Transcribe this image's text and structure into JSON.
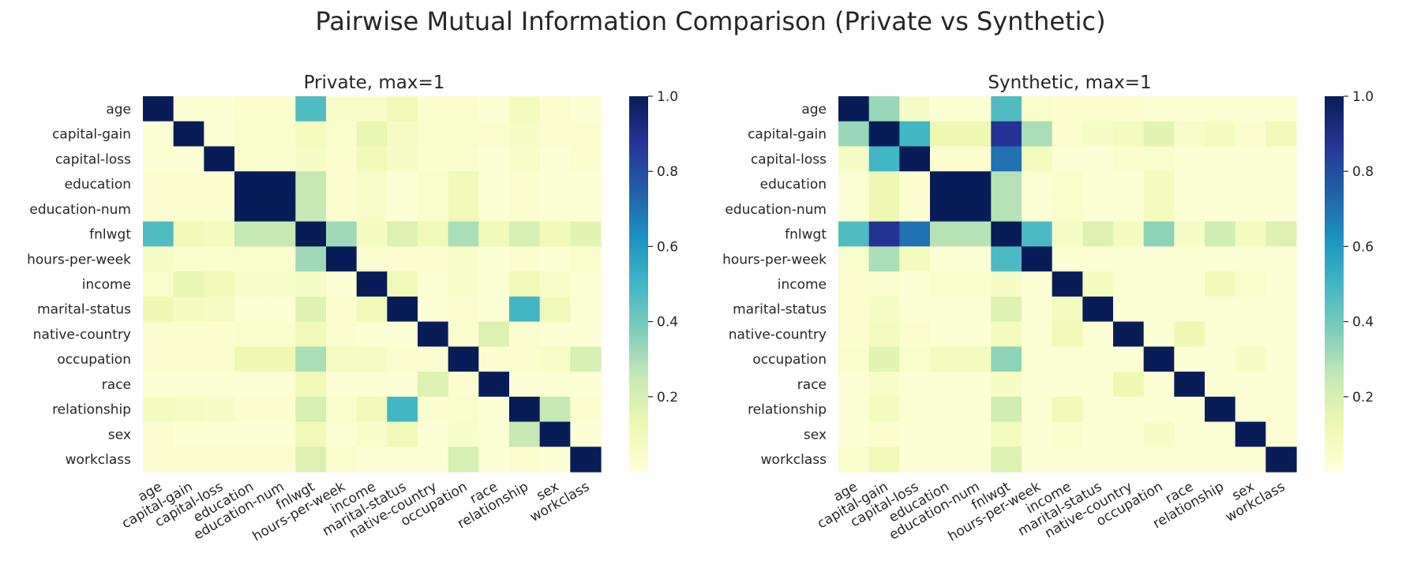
{
  "title": "Pairwise Mutual Information Comparison (Private vs Synthetic)",
  "variables": [
    "age",
    "capital-gain",
    "capital-loss",
    "education",
    "education-num",
    "fnlwgt",
    "hours-per-week",
    "income",
    "marital-status",
    "native-country",
    "occupation",
    "race",
    "relationship",
    "sex",
    "workclass"
  ],
  "colorscale": {
    "name": "YlGnBu",
    "stops": [
      "#ffffd9",
      "#edf8b1",
      "#c7e9b4",
      "#7fcdbb",
      "#41b6c4",
      "#1d91c0",
      "#225ea8",
      "#253494",
      "#081d58"
    ],
    "vmin": 0,
    "vmax": 1,
    "ticks": [
      0.2,
      0.4,
      0.6,
      0.8,
      1.0
    ],
    "tick_labels": [
      "0.2",
      "0.4",
      "0.6",
      "0.8",
      "1.0"
    ]
  },
  "chart_data": [
    {
      "type": "heatmap",
      "title": "Private, max=1",
      "values": [
        [
          1.0,
          0.02,
          0.02,
          0.03,
          0.03,
          0.47,
          0.05,
          0.05,
          0.1,
          0.03,
          0.03,
          0.02,
          0.08,
          0.03,
          0.02
        ],
        [
          0.02,
          1.0,
          0.02,
          0.04,
          0.04,
          0.08,
          0.04,
          0.14,
          0.07,
          0.04,
          0.04,
          0.03,
          0.06,
          0.03,
          0.03
        ],
        [
          0.02,
          0.02,
          1.0,
          0.04,
          0.04,
          0.06,
          0.03,
          0.1,
          0.06,
          0.03,
          0.03,
          0.02,
          0.05,
          0.02,
          0.03
        ],
        [
          0.03,
          0.03,
          0.03,
          1.0,
          1.0,
          0.25,
          0.03,
          0.05,
          0.02,
          0.04,
          0.1,
          0.02,
          0.03,
          0.02,
          0.02
        ],
        [
          0.03,
          0.03,
          0.03,
          1.0,
          1.0,
          0.25,
          0.03,
          0.05,
          0.02,
          0.04,
          0.1,
          0.02,
          0.03,
          0.02,
          0.02
        ],
        [
          0.47,
          0.1,
          0.08,
          0.25,
          0.25,
          1.0,
          0.32,
          0.08,
          0.18,
          0.1,
          0.3,
          0.1,
          0.2,
          0.1,
          0.16
        ],
        [
          0.06,
          0.04,
          0.04,
          0.04,
          0.04,
          0.32,
          1.0,
          0.03,
          0.03,
          0.03,
          0.05,
          0.02,
          0.03,
          0.02,
          0.04
        ],
        [
          0.04,
          0.14,
          0.1,
          0.05,
          0.05,
          0.06,
          0.02,
          1.0,
          0.1,
          0.02,
          0.05,
          0.02,
          0.1,
          0.05,
          0.02
        ],
        [
          0.12,
          0.08,
          0.07,
          0.02,
          0.02,
          0.18,
          0.03,
          0.1,
          1.0,
          0.02,
          0.03,
          0.02,
          0.5,
          0.1,
          0.02
        ],
        [
          0.03,
          0.03,
          0.03,
          0.04,
          0.04,
          0.1,
          0.03,
          0.02,
          0.02,
          1.0,
          0.03,
          0.18,
          0.03,
          0.02,
          0.02
        ],
        [
          0.03,
          0.03,
          0.03,
          0.12,
          0.12,
          0.3,
          0.07,
          0.07,
          0.03,
          0.03,
          1.0,
          0.03,
          0.03,
          0.05,
          0.2
        ],
        [
          0.02,
          0.02,
          0.02,
          0.02,
          0.02,
          0.1,
          0.02,
          0.02,
          0.02,
          0.18,
          0.03,
          1.0,
          0.02,
          0.02,
          0.02
        ],
        [
          0.08,
          0.07,
          0.06,
          0.03,
          0.03,
          0.2,
          0.04,
          0.1,
          0.5,
          0.03,
          0.04,
          0.02,
          1.0,
          0.25,
          0.03
        ],
        [
          0.03,
          0.02,
          0.02,
          0.02,
          0.02,
          0.1,
          0.02,
          0.05,
          0.1,
          0.02,
          0.05,
          0.02,
          0.25,
          1.0,
          0.02
        ],
        [
          0.03,
          0.03,
          0.03,
          0.03,
          0.03,
          0.18,
          0.04,
          0.02,
          0.02,
          0.02,
          0.2,
          0.02,
          0.03,
          0.02,
          1.0
        ]
      ]
    },
    {
      "type": "heatmap",
      "title": "Synthetic, max=1",
      "values": [
        [
          1.0,
          0.33,
          0.06,
          0.02,
          0.02,
          0.47,
          0.04,
          0.03,
          0.03,
          0.03,
          0.02,
          0.02,
          0.02,
          0.02,
          0.02
        ],
        [
          0.33,
          1.0,
          0.5,
          0.12,
          0.12,
          0.88,
          0.3,
          0.03,
          0.06,
          0.08,
          0.16,
          0.05,
          0.08,
          0.03,
          0.1
        ],
        [
          0.06,
          0.5,
          1.0,
          0.03,
          0.03,
          0.7,
          0.08,
          0.02,
          0.02,
          0.03,
          0.04,
          0.02,
          0.02,
          0.02,
          0.02
        ],
        [
          0.02,
          0.12,
          0.03,
          1.0,
          1.0,
          0.28,
          0.02,
          0.04,
          0.02,
          0.02,
          0.08,
          0.02,
          0.02,
          0.02,
          0.02
        ],
        [
          0.02,
          0.12,
          0.03,
          1.0,
          1.0,
          0.28,
          0.02,
          0.04,
          0.02,
          0.02,
          0.08,
          0.02,
          0.02,
          0.02,
          0.02
        ],
        [
          0.47,
          0.88,
          0.7,
          0.28,
          0.28,
          1.0,
          0.48,
          0.06,
          0.18,
          0.08,
          0.35,
          0.06,
          0.22,
          0.08,
          0.18
        ],
        [
          0.04,
          0.3,
          0.08,
          0.02,
          0.02,
          0.48,
          1.0,
          0.02,
          0.02,
          0.02,
          0.02,
          0.02,
          0.02,
          0.02,
          0.02
        ],
        [
          0.03,
          0.03,
          0.02,
          0.04,
          0.04,
          0.06,
          0.02,
          1.0,
          0.08,
          0.02,
          0.02,
          0.02,
          0.1,
          0.04,
          0.02
        ],
        [
          0.03,
          0.06,
          0.02,
          0.02,
          0.02,
          0.18,
          0.02,
          0.08,
          1.0,
          0.02,
          0.02,
          0.02,
          0.02,
          0.02,
          0.02
        ],
        [
          0.03,
          0.08,
          0.03,
          0.02,
          0.02,
          0.08,
          0.02,
          0.1,
          0.02,
          1.0,
          0.02,
          0.12,
          0.02,
          0.02,
          0.02
        ],
        [
          0.04,
          0.16,
          0.04,
          0.08,
          0.08,
          0.35,
          0.02,
          0.02,
          0.02,
          0.02,
          1.0,
          0.02,
          0.02,
          0.06,
          0.02
        ],
        [
          0.02,
          0.05,
          0.02,
          0.02,
          0.02,
          0.06,
          0.02,
          0.02,
          0.02,
          0.12,
          0.02,
          1.0,
          0.02,
          0.02,
          0.02
        ],
        [
          0.02,
          0.08,
          0.02,
          0.02,
          0.02,
          0.22,
          0.02,
          0.1,
          0.02,
          0.02,
          0.02,
          0.02,
          1.0,
          0.02,
          0.02
        ],
        [
          0.02,
          0.03,
          0.02,
          0.02,
          0.02,
          0.08,
          0.02,
          0.04,
          0.02,
          0.02,
          0.06,
          0.02,
          0.02,
          1.0,
          0.02
        ],
        [
          0.04,
          0.1,
          0.02,
          0.02,
          0.02,
          0.18,
          0.02,
          0.02,
          0.02,
          0.02,
          0.02,
          0.02,
          0.02,
          0.02,
          1.0
        ]
      ]
    }
  ]
}
